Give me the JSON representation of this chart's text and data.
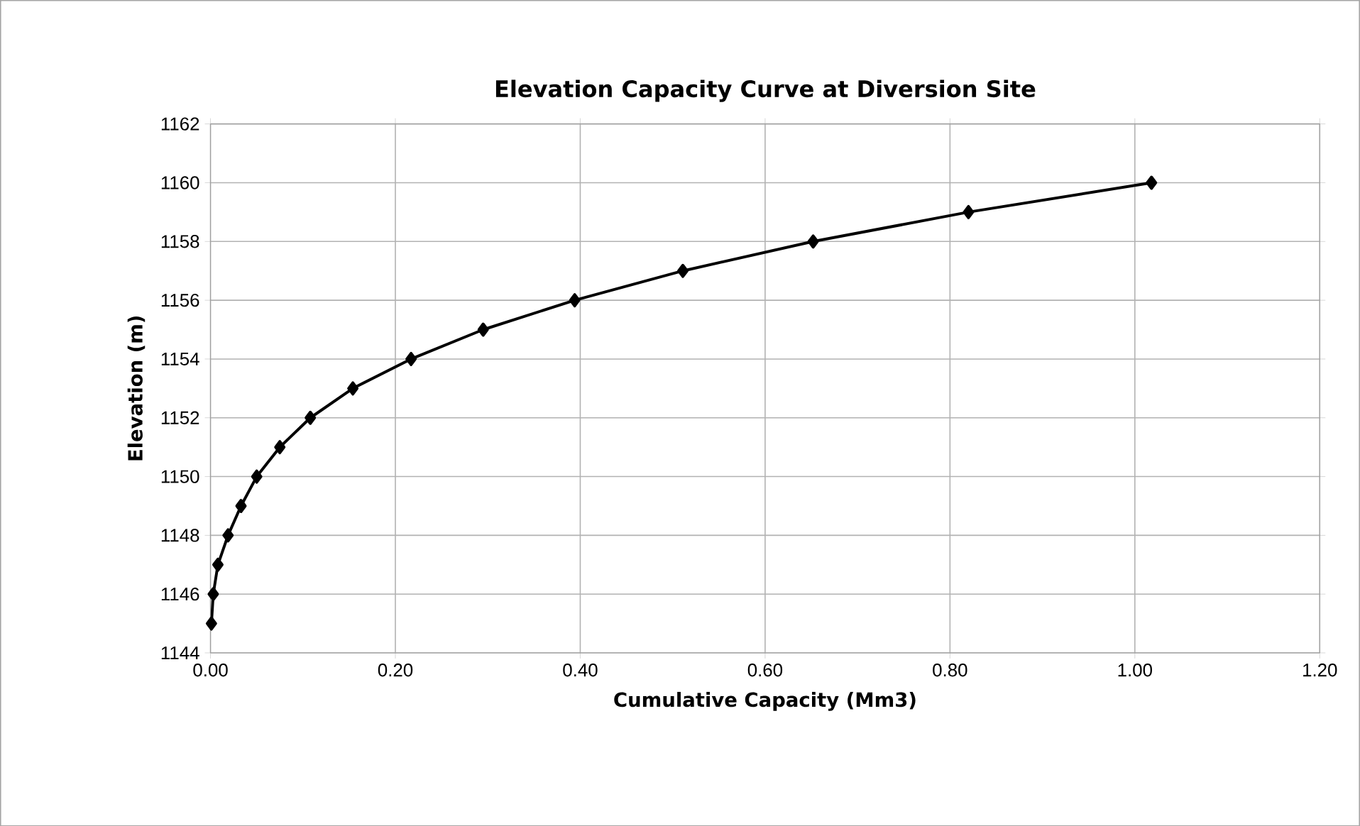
{
  "chart_data": {
    "type": "line",
    "title": "Elevation Capacity Curve at Diversion Site",
    "xlabel": "Cumulative Capacity (Mm3)",
    "ylabel": "Elevation (m)",
    "x": [
      0.001,
      0.003,
      0.008,
      0.019,
      0.033,
      0.05,
      0.075,
      0.108,
      0.154,
      0.217,
      0.295,
      0.394,
      0.511,
      0.652,
      0.82,
      1.018
    ],
    "series": [
      {
        "color": "#000000",
        "values": [
          1145,
          1146,
          1147,
          1148,
          1149,
          1150,
          1151,
          1152,
          1153,
          1154,
          1155,
          1156,
          1157,
          1158,
          1159,
          1160
        ]
      }
    ],
    "xlim": [
      0,
      1.2
    ],
    "xticks": [
      {
        "value": 0,
        "label": "0.00"
      },
      {
        "value": 0.2,
        "label": "0.20"
      },
      {
        "value": 0.4,
        "label": "0.40"
      },
      {
        "value": 0.6,
        "label": "0.60"
      },
      {
        "value": 0.8,
        "label": "0.80"
      },
      {
        "value": 1.0,
        "label": "1.00"
      },
      {
        "value": 1.2,
        "label": "1.20"
      }
    ],
    "ylim": [
      1144,
      1162
    ],
    "yticks": [
      1144,
      1146,
      1148,
      1150,
      1152,
      1154,
      1156,
      1158,
      1160,
      1162
    ],
    "grid": true,
    "marker": "diamond",
    "line_style": "solid"
  }
}
